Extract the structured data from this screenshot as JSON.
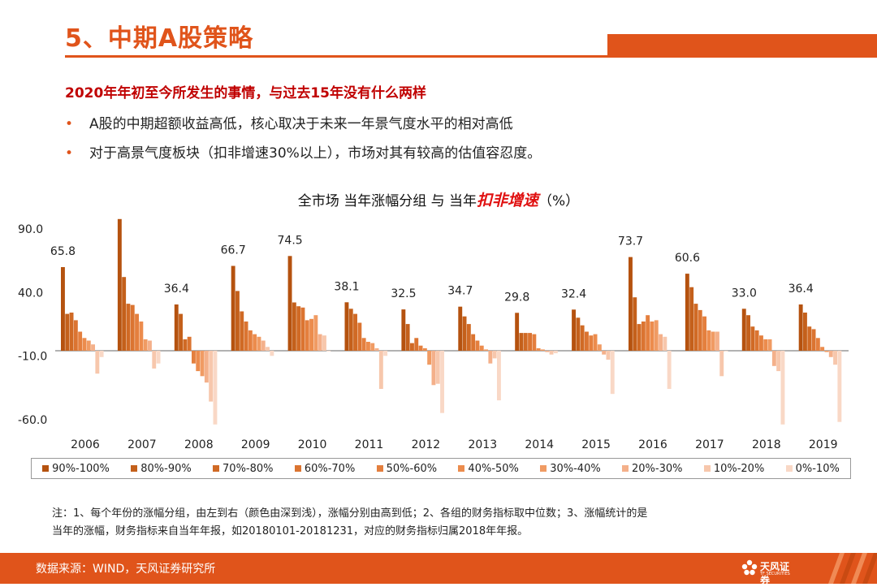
{
  "header": {
    "title": "5、中期A股策略",
    "subtitle": "2020年年初至今所发生的事情，与过去15年没有什么两样",
    "bullets": [
      "A股的中期超额收益高低，核心取决于未来一年景气度水平的相对高低",
      "对于高景气度板块（扣非增速30%以上），市场对其有较高的估值容忍度。"
    ]
  },
  "chart_title": {
    "prefix": "全市场  当年涨幅分组  与  当年",
    "emphasis": "扣非增速",
    "suffix": "（%）"
  },
  "chart_data": {
    "type": "bar",
    "categories": [
      "2006",
      "2007",
      "2008",
      "2009",
      "2010",
      "2011",
      "2012",
      "2013",
      "2014",
      "2015",
      "2016",
      "2017",
      "2018",
      "2019"
    ],
    "yticks": [
      "90.0",
      "40.0",
      "-10.0",
      "-60.0"
    ],
    "ylim": [
      -60,
      103.6
    ],
    "series": [
      {
        "name": "90%-100%",
        "color": "#b5520f",
        "values": [
          65.8,
          103.6,
          36.4,
          66.7,
          74.5,
          38.1,
          32.5,
          34.7,
          29.8,
          32.4,
          73.7,
          60.6,
          33.0,
          36.4
        ]
      },
      {
        "name": "80%-90%",
        "color": "#c4601b",
        "values": [
          29,
          58,
          29,
          47,
          38,
          33,
          21,
          27,
          14,
          26,
          42,
          50,
          28,
          30
        ]
      },
      {
        "name": "70%-80%",
        "color": "#d06a25",
        "values": [
          30,
          37,
          9,
          31,
          35,
          29,
          6,
          21,
          14,
          20,
          21,
          37,
          19,
          19
        ]
      },
      {
        "name": "60%-70%",
        "color": "#db7431",
        "values": [
          24,
          36,
          11,
          23,
          34,
          22,
          10,
          13,
          14,
          15,
          23,
          32,
          16,
          17
        ]
      },
      {
        "name": "50%-60%",
        "color": "#e47f3e",
        "values": [
          15,
          29,
          -10,
          16,
          24,
          10,
          4,
          8,
          13,
          12,
          28,
          27,
          12,
          10
        ]
      },
      {
        "name": "40%-50%",
        "color": "#ec8c4d",
        "values": [
          10,
          23,
          -16,
          13,
          25,
          7,
          2,
          4,
          2,
          13,
          23,
          16,
          9,
          3
        ]
      },
      {
        "name": "30%-40%",
        "color": "#f09b63",
        "values": [
          8,
          9,
          -20,
          11,
          28,
          6,
          -11,
          1,
          1,
          5,
          24,
          15,
          9,
          -1
        ]
      },
      {
        "name": "20%-30%",
        "color": "#f4b08a",
        "values": [
          5,
          8,
          -25,
          8,
          13,
          2,
          -27,
          -10,
          -1,
          -3,
          13,
          15,
          -12,
          -5
        ]
      },
      {
        "name": "10%-20%",
        "color": "#f7c7ac",
        "values": [
          -18,
          -14,
          -40,
          3,
          12,
          -30,
          -26,
          -6,
          -3,
          -7,
          11,
          -20,
          -16,
          -11
        ]
      },
      {
        "name": "0%-10%",
        "color": "#f9d8c6",
        "values": [
          -5,
          -10,
          -58,
          -4,
          0,
          -4,
          -49,
          -39,
          -2,
          -34,
          -30,
          0,
          -58,
          -56
        ]
      }
    ]
  },
  "legend_labels": [
    "90%-100%",
    "80%-90%",
    "70%-80%",
    "60%-70%",
    "50%-60%",
    "40%-50%",
    "30%-40%",
    "20%-30%",
    "10%-20%",
    "0%-10%"
  ],
  "note": [
    "注：1、每个年份的涨幅分组，由左到右（颜色由深到浅），涨幅分别由高到低；2、各组的财务指标取中位数；3、涨幅统计的是",
    "当年的涨幅，财务指标来自当年年报，如20180101-20181231，对应的财务指标归属2018年年报。"
  ],
  "footer": {
    "source": "数据来源：WIND，天风证券研究所",
    "logo_text": "天风证券",
    "logo_sub": "TF SECURITIES"
  }
}
